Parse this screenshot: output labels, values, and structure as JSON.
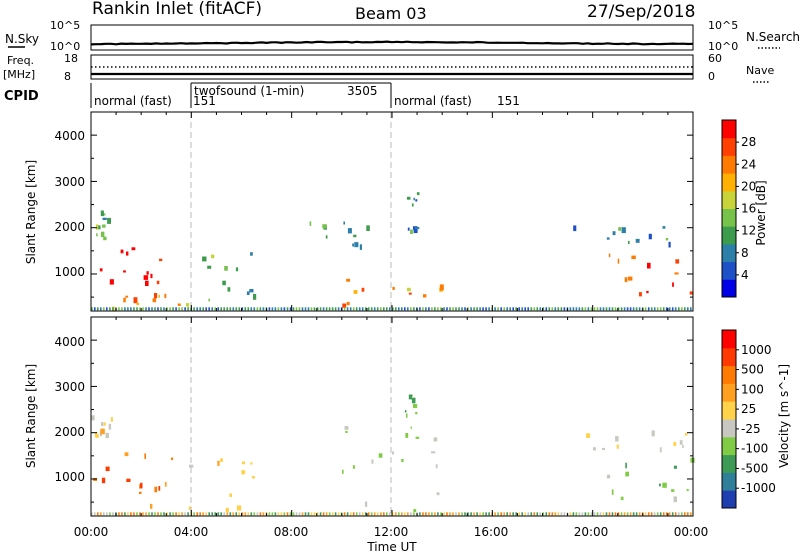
{
  "header": {
    "site": "Rankin Inlet (fitACF)",
    "beam": "Beam 03",
    "date": "27/Sep/2018"
  },
  "noise_panel": {
    "left_label": "N.Sky",
    "right_label": "N.Search",
    "left_ticks": [
      "10^5",
      "10^0"
    ],
    "right_ticks": [
      "10^5",
      "10^0"
    ]
  },
  "freq_panel": {
    "left_label_1": "Freq.",
    "left_label_2": "[MHz]",
    "left_ticks": [
      "18",
      "8"
    ],
    "right_label": "Nave",
    "right_ticks": [
      "60",
      "0"
    ]
  },
  "cpid": {
    "label": "CPID",
    "segments": [
      {
        "start": 0,
        "end": 4,
        "text": "normal (fast)",
        "id": "151"
      },
      {
        "start": 4,
        "end": 12,
        "text": "twofsound (1-min)",
        "id": "3505"
      },
      {
        "start": 12,
        "end": 24,
        "text": "normal (fast)",
        "id": "151"
      }
    ]
  },
  "power_panel": {
    "ylabel": "Slant Range [km]",
    "yticks": [
      "4000",
      "3000",
      "2000",
      "1000"
    ],
    "colorbar_label": "Power [dB]",
    "colorbar_ticks": [
      "28",
      "24",
      "20",
      "16",
      "12",
      "8",
      "4"
    ],
    "colors": [
      "#0000e6",
      "#1e50c8",
      "#2c7fa8",
      "#3d9b4d",
      "#77c24a",
      "#c8d43a",
      "#ffb000",
      "#ff7a00",
      "#ff4000",
      "#ff0000"
    ]
  },
  "velocity_panel": {
    "ylabel": "Slant Range [km]",
    "yticks": [
      "4000",
      "3000",
      "2000",
      "1000"
    ],
    "colorbar_label": "Velocity [m s^-1]",
    "colorbar_ticks": [
      "1000",
      "500",
      "100",
      "25",
      "-25",
      "-100",
      "-500",
      "-1000"
    ],
    "colors": [
      "#1f3fb0",
      "#2f7f9a",
      "#3e9b56",
      "#80cc44",
      "#c8c8c0",
      "#ffd24a",
      "#ffa020",
      "#ff7a00",
      "#ff3a00",
      "#ff0000"
    ]
  },
  "xaxis": {
    "label": "Time UT",
    "ticks": [
      "00:00",
      "04:00",
      "08:00",
      "12:00",
      "16:00",
      "20:00",
      "00:00"
    ]
  },
  "chart_data": {
    "type": "heatmap",
    "title": "Rankin Inlet (fitACF)",
    "x_unit": "hours UT",
    "xlim": [
      0,
      24
    ],
    "ylim": [
      200,
      4500
    ],
    "y_unit": "km",
    "power_colorbar_range": [
      0,
      30
    ],
    "velocity_colorbar_range": [
      -1000,
      1000
    ],
    "power_regions": [
      {
        "t0": 0.0,
        "t1": 3.2,
        "r0": 700,
        "r1": 1600,
        "v": 28
      },
      {
        "t0": 0.0,
        "t1": 0.8,
        "r0": 1800,
        "r1": 2400,
        "v": 12
      },
      {
        "t0": 0.5,
        "t1": 4.2,
        "r0": 250,
        "r1": 600,
        "v": 22
      },
      {
        "t0": 4.0,
        "t1": 6.5,
        "r0": 300,
        "r1": 1500,
        "v": 12
      },
      {
        "t0": 8.5,
        "t1": 11.0,
        "r0": 1500,
        "r1": 2200,
        "v": 10
      },
      {
        "t0": 10.0,
        "t1": 14.0,
        "r0": 300,
        "r1": 900,
        "v": 20
      },
      {
        "t0": 12.5,
        "t1": 13.0,
        "r0": 1900,
        "r1": 3000,
        "v": 8
      },
      {
        "t0": 19.0,
        "t1": 24.0,
        "r0": 1600,
        "r1": 2100,
        "v": 8
      },
      {
        "t0": 20.5,
        "t1": 24.0,
        "r0": 500,
        "r1": 1500,
        "v": 26
      }
    ],
    "velocity_regions": [
      {
        "t0": 0.0,
        "t1": 3.2,
        "r0": 700,
        "r1": 1700,
        "v": 500
      },
      {
        "t0": 0.0,
        "t1": 0.8,
        "r0": 1800,
        "r1": 2400,
        "v": 10
      },
      {
        "t0": 2.0,
        "t1": 6.5,
        "r0": 300,
        "r1": 1500,
        "v": 100
      },
      {
        "t0": 10.0,
        "t1": 14.0,
        "r0": 300,
        "r1": 2200,
        "v": -200
      },
      {
        "t0": 12.5,
        "t1": 13.0,
        "r0": 1900,
        "r1": 3000,
        "v": -300
      },
      {
        "t0": 19.0,
        "t1": 24.0,
        "r0": 1600,
        "r1": 2100,
        "v": 10
      },
      {
        "t0": 20.5,
        "t1": 24.0,
        "r0": 500,
        "r1": 1500,
        "v": -300
      }
    ],
    "vertical_markers": [
      4,
      12
    ]
  }
}
